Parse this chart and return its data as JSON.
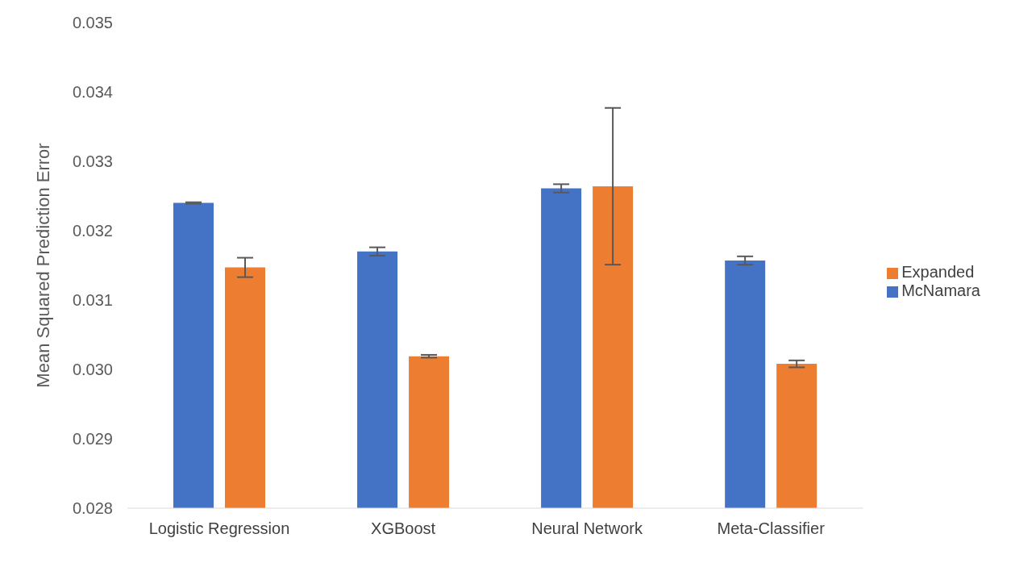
{
  "chart_data": {
    "type": "bar",
    "ylabel": "Mean Squared Prediction Error",
    "categories": [
      "Logistic Regression",
      "XGBoost",
      "Neural Network",
      "Meta-Classifier"
    ],
    "series": [
      {
        "name": "McNamara",
        "color": "#4472c4",
        "values": [
          0.0324,
          0.0317,
          0.03261,
          0.03157
        ],
        "errors": [
          1e-05,
          6e-05,
          6e-05,
          6e-05
        ]
      },
      {
        "name": "Expanded",
        "color": "#ed7d31",
        "values": [
          0.03147,
          0.03019,
          0.03264,
          0.03008
        ],
        "errors": [
          0.00014,
          2e-05,
          0.00113,
          5e-05
        ]
      }
    ],
    "ylim": [
      0.028,
      0.035
    ],
    "yticks": [
      {
        "value": 0.028,
        "label": "0.028"
      },
      {
        "value": 0.029,
        "label": "0.029"
      },
      {
        "value": 0.03,
        "label": "0.030"
      },
      {
        "value": 0.031,
        "label": "0.031"
      },
      {
        "value": 0.032,
        "label": "0.032"
      },
      {
        "value": 0.033,
        "label": "0.033"
      },
      {
        "value": 0.034,
        "label": "0.034"
      },
      {
        "value": 0.035,
        "label": "0.035"
      }
    ],
    "grid": false,
    "legend": "right"
  }
}
